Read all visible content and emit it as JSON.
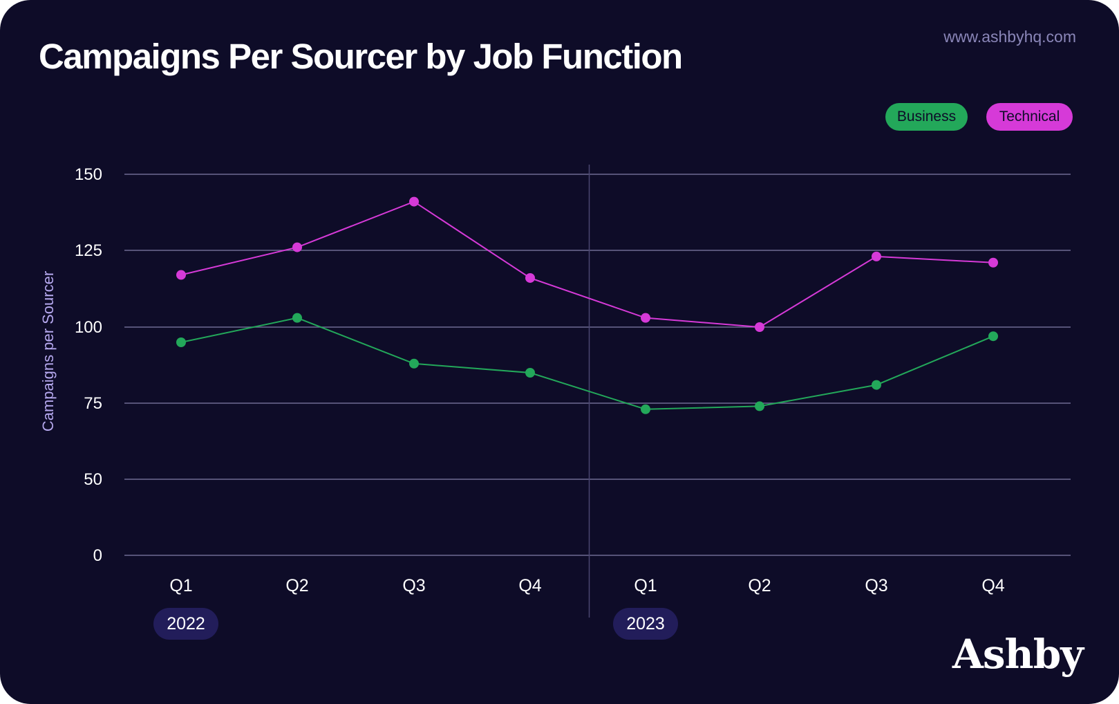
{
  "header": {
    "title": "Campaigns Per Sourcer by Job Function",
    "url": "www.ashbyhq.com"
  },
  "legend": {
    "business": "Business",
    "technical": "Technical"
  },
  "brand": {
    "logo": "Ashby"
  },
  "colors": {
    "background": "#0e0c28",
    "business": "#23a85a",
    "technical": "#d63ad8",
    "gridline": "#6f6b93",
    "ylabel": "#b5a8ee",
    "year_pill": "#221d5a"
  },
  "chart_data": {
    "type": "line",
    "title": "Campaigns Per Sourcer by Job Function",
    "xlabel": "",
    "ylabel": "Campaigns per Sourcer",
    "ylim": [
      0,
      150
    ],
    "yticks": [
      0,
      50,
      75,
      100,
      125,
      150
    ],
    "grid": true,
    "legend_position": "top-right",
    "categories": [
      "Q1",
      "Q2",
      "Q3",
      "Q4",
      "Q1",
      "Q2",
      "Q3",
      "Q4"
    ],
    "year_groups": [
      {
        "label": "2022",
        "start_index": 0
      },
      {
        "label": "2023",
        "start_index": 4
      }
    ],
    "series": [
      {
        "name": "Business",
        "color": "#23a85a",
        "values": [
          95,
          103,
          88,
          85,
          73,
          74,
          81,
          97
        ]
      },
      {
        "name": "Technical",
        "color": "#d63ad8",
        "values": [
          117,
          126,
          141,
          116,
          103,
          100,
          123,
          121
        ]
      }
    ]
  }
}
